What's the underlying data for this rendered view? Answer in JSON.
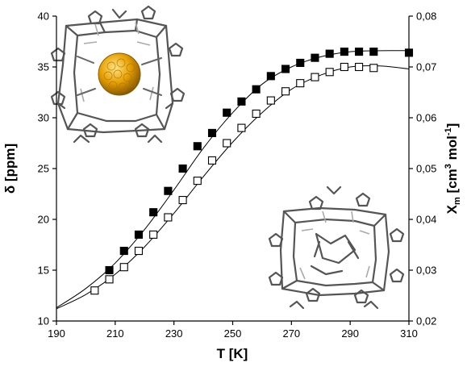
{
  "chart_data": {
    "type": "scatter",
    "title": "",
    "xlabel": "T [K]",
    "ylabel": "δ [ppm]",
    "y2label": {
      "base": "X",
      "sub": "m",
      "text": " [cm",
      "sup1": "3",
      "mid": " mol",
      "sup2": "-1",
      "end": "]"
    },
    "xlim": [
      190,
      310
    ],
    "ylim": [
      10,
      40
    ],
    "y2lim": [
      0.02,
      0.08
    ],
    "xticks": [
      "190",
      "210",
      "230",
      "250",
      "270",
      "290",
      "310"
    ],
    "yticks": [
      "10",
      "15",
      "20",
      "25",
      "30",
      "35",
      "40"
    ],
    "y2ticks": [
      "0,02",
      "0,03",
      "0,04",
      "0,05",
      "0,06",
      "0,07",
      "0,08"
    ],
    "grid": false,
    "legend": "none",
    "series": [
      {
        "marker": "filled-square",
        "axis": "left",
        "color": "#000000",
        "x": [
          208,
          213,
          218,
          223,
          228,
          233,
          238,
          243,
          248,
          253,
          258,
          263,
          268,
          273,
          278,
          283,
          288,
          293,
          298,
          310
        ],
        "y": [
          15.0,
          16.9,
          18.5,
          20.7,
          22.8,
          25.0,
          27.2,
          28.5,
          30.5,
          31.6,
          32.8,
          34.1,
          34.8,
          35.4,
          35.9,
          36.3,
          36.5,
          36.5,
          36.5,
          36.4
        ]
      },
      {
        "marker": "open-square",
        "axis": "left",
        "color": "#000000",
        "x": [
          203,
          208,
          213,
          218,
          223,
          228,
          233,
          238,
          243,
          248,
          253,
          258,
          263,
          268,
          273,
          278,
          283,
          288,
          293,
          298
        ],
        "y": [
          13.0,
          14.1,
          15.3,
          16.9,
          18.5,
          20.2,
          21.9,
          23.8,
          25.8,
          27.5,
          29.0,
          30.4,
          31.7,
          32.6,
          33.4,
          34.0,
          34.5,
          35.0,
          35.0,
          34.9
        ]
      }
    ],
    "fits": [
      {
        "line": "solid",
        "x": [
          190,
          200,
          210,
          220,
          230,
          240,
          250,
          260,
          270,
          280,
          290,
          300,
          310
        ],
        "y": [
          11.3,
          13.2,
          15.7,
          19.0,
          22.9,
          27.0,
          30.5,
          33.3,
          35.0,
          36.0,
          36.5,
          36.6,
          36.6
        ]
      },
      {
        "line": "solid",
        "x": [
          190,
          200,
          210,
          220,
          230,
          240,
          250,
          260,
          270,
          280,
          290,
          300,
          310
        ],
        "y": [
          11.2,
          12.6,
          14.6,
          17.3,
          20.6,
          24.2,
          27.6,
          30.5,
          32.8,
          34.2,
          35.0,
          35.1,
          34.8
        ]
      }
    ],
    "insets": [
      {
        "name": "host-guest-cage",
        "guest_color": "#e6a000"
      },
      {
        "name": "empty-cage"
      }
    ]
  }
}
